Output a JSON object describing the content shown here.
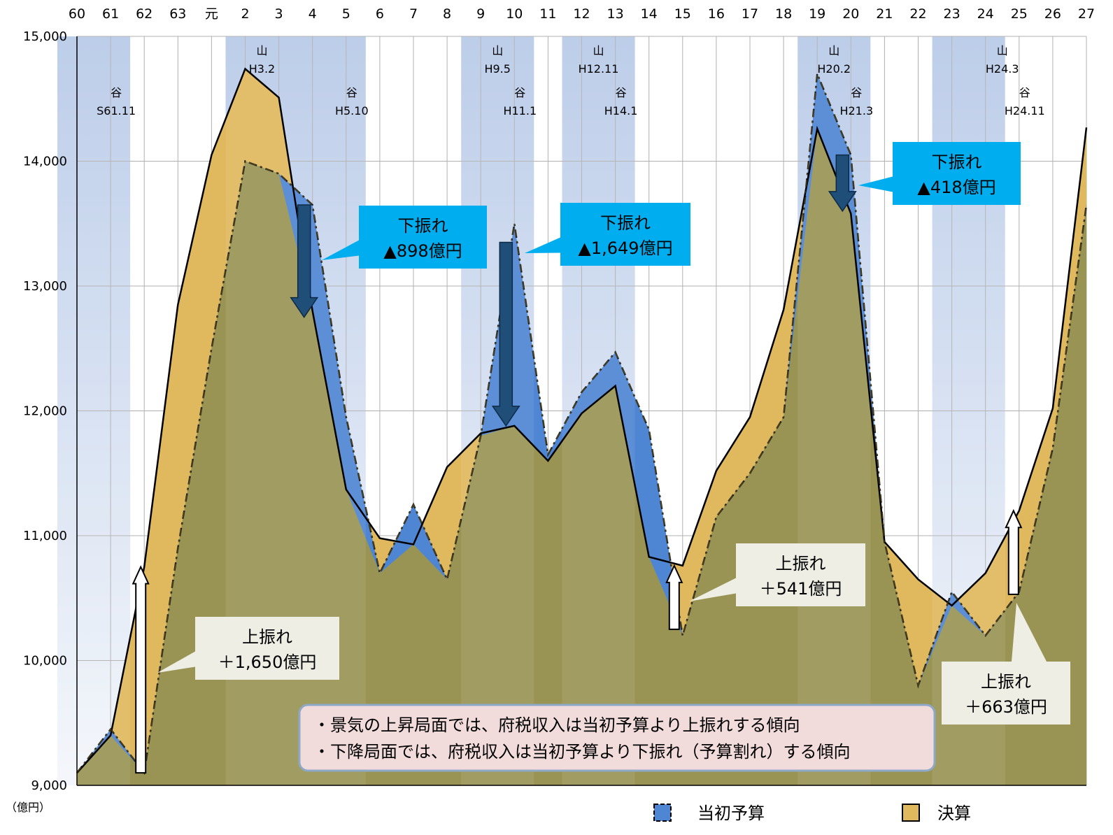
{
  "chart_data": {
    "type": "area",
    "ylabel": "（億円）",
    "ylim": [
      9000,
      15000
    ],
    "yticks": [
      9000,
      10000,
      11000,
      12000,
      13000,
      14000,
      15000
    ],
    "ytick_labels": [
      "9,000",
      "10,000",
      "11,000",
      "12,000",
      "13,000",
      "14,000",
      "15,000"
    ],
    "grid": true,
    "categories": [
      "60",
      "61",
      "62",
      "63",
      "元",
      "2",
      "3",
      "4",
      "5",
      "6",
      "7",
      "8",
      "9",
      "10",
      "11",
      "12",
      "13",
      "14",
      "15",
      "16",
      "17",
      "18",
      "19",
      "20",
      "21",
      "22",
      "23",
      "24",
      "25",
      "26",
      "27"
    ],
    "series": [
      {
        "name": "当初予算",
        "color": "#4f86d3",
        "line_style": "dash-dot",
        "values": [
          9100,
          9450,
          9100,
          10900,
          12500,
          14000,
          13900,
          13650,
          11950,
          10700,
          11250,
          10650,
          11800,
          13500,
          11650,
          12150,
          12470,
          11850,
          10200,
          11150,
          11500,
          11950,
          14700,
          14050,
          10950,
          9800,
          10550,
          10200,
          10550,
          11700,
          13650
        ]
      },
      {
        "name": "決算",
        "color": "#e0b85e",
        "line_style": "solid",
        "values": [
          9100,
          9400,
          10750,
          12850,
          14050,
          14740,
          14510,
          12800,
          11370,
          10980,
          10930,
          11550,
          11820,
          11880,
          11600,
          11980,
          12200,
          10830,
          10760,
          11520,
          11950,
          12810,
          14260,
          13580,
          10950,
          10650,
          10440,
          10700,
          11200,
          12020,
          14270
        ]
      }
    ],
    "shaded_periods": [
      {
        "from": "60",
        "to": "61",
        "label_top": "",
        "label_bottom": ""
      },
      {
        "from": "2",
        "to": "5",
        "label_top": "",
        "label_bottom": ""
      },
      {
        "from": "9",
        "to": "10",
        "label_top": "",
        "label_bottom": ""
      },
      {
        "from": "12",
        "to": "13",
        "label_top": "",
        "label_bottom": ""
      },
      {
        "from": "19",
        "to": "20",
        "label_top": "",
        "label_bottom": ""
      },
      {
        "from": "23",
        "to": "24",
        "label_top": "",
        "label_bottom": ""
      }
    ],
    "cycle_labels": [
      {
        "kind": "谷",
        "date": "S61.11",
        "at": "61"
      },
      {
        "kind": "山",
        "date": "H3.2",
        "at": "2"
      },
      {
        "kind": "谷",
        "date": "H5.10",
        "at": "5"
      },
      {
        "kind": "山",
        "date": "H9.5",
        "at": "9"
      },
      {
        "kind": "谷",
        "date": "H11.1",
        "at": "10"
      },
      {
        "kind": "山",
        "date": "H12.11",
        "at": "12"
      },
      {
        "kind": "谷",
        "date": "H14.1",
        "at": "13"
      },
      {
        "kind": "山",
        "date": "H20.2",
        "at": "19"
      },
      {
        "kind": "谷",
        "date": "H21.3",
        "at": "20"
      },
      {
        "kind": "山",
        "date": "H24.3",
        "at": "24"
      },
      {
        "kind": "谷",
        "date": "H24.11",
        "at": "25"
      }
    ],
    "annotations": [
      {
        "title": "上振れ",
        "amount": "＋1,650億円",
        "direction": "up",
        "at": "62",
        "from": 9100,
        "to": 10750
      },
      {
        "title": "下振れ",
        "amount": "▲898億円",
        "direction": "down",
        "at": "4",
        "from": 13650,
        "to": 12750
      },
      {
        "title": "下振れ",
        "amount": "▲1,649億円",
        "direction": "down",
        "at": "10",
        "from": 13350,
        "to": 11880
      },
      {
        "title": "上振れ",
        "amount": "＋541億円",
        "direction": "up",
        "at": "15",
        "from": 10250,
        "to": 10760
      },
      {
        "title": "下振れ",
        "amount": "▲418億円",
        "direction": "down",
        "at": "20",
        "from": 14050,
        "to": 13600
      },
      {
        "title": "上振れ",
        "amount": "＋663億円",
        "direction": "up",
        "at": "25",
        "from": 10530,
        "to": 11200
      }
    ],
    "legend": {
      "placement": "bottom-right",
      "items": [
        {
          "label": "当初予算",
          "color": "#4f86d3"
        },
        {
          "label": "決算",
          "color": "#e0b85e"
        }
      ]
    }
  },
  "note": {
    "lines": [
      "・景気の上昇局面では、府税収入は当初予算より上振れする傾向",
      "・下降局面では、府税収入は当初予算より下振れ（予算割れ）する傾向"
    ]
  },
  "colors": {
    "overlap": "#9a9454",
    "callout_down_bg": "#00aeef",
    "callout_up_bg": "#eeeee4",
    "arrow_down": "#1f4e79",
    "note_bg": "#f2dcdb",
    "note_border": "#8ea9c8",
    "shade": "#b4c7e7"
  }
}
